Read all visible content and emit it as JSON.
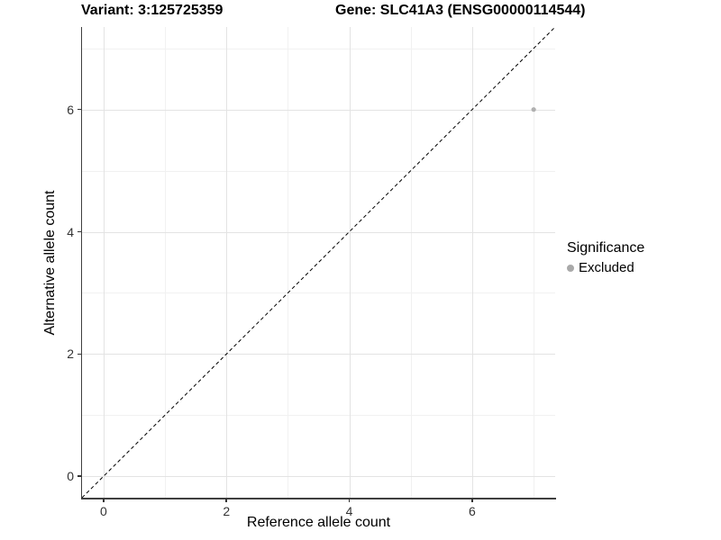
{
  "chart_data": {
    "type": "scatter",
    "titles": {
      "variant": "Variant: 3:125725359",
      "gene": "Gene: SLC41A3 (ENSG00000114544)"
    },
    "xlabel": "Reference allele count",
    "ylabel": "Alternative allele count",
    "xlim": [
      -0.35,
      7.35
    ],
    "ylim": [
      -0.35,
      7.35
    ],
    "x_major_ticks": [
      0,
      2,
      4,
      6
    ],
    "x_minor_ticks": [
      1,
      3,
      5,
      7
    ],
    "y_major_ticks": [
      0,
      2,
      4,
      6
    ],
    "y_minor_ticks": [
      1,
      3,
      5,
      7
    ],
    "grid": "major+minor",
    "reference_line": {
      "slope": 1,
      "intercept": 0,
      "style": "dashed",
      "color": "#000000"
    },
    "series": [
      {
        "name": "Excluded",
        "color": "#b0b0b0",
        "points": [
          {
            "x": 7,
            "y": 6
          }
        ]
      }
    ],
    "legend": {
      "title": "Significance",
      "position": "right",
      "entries": [
        {
          "label": "Excluded",
          "color": "#a9a9a9"
        }
      ]
    }
  }
}
